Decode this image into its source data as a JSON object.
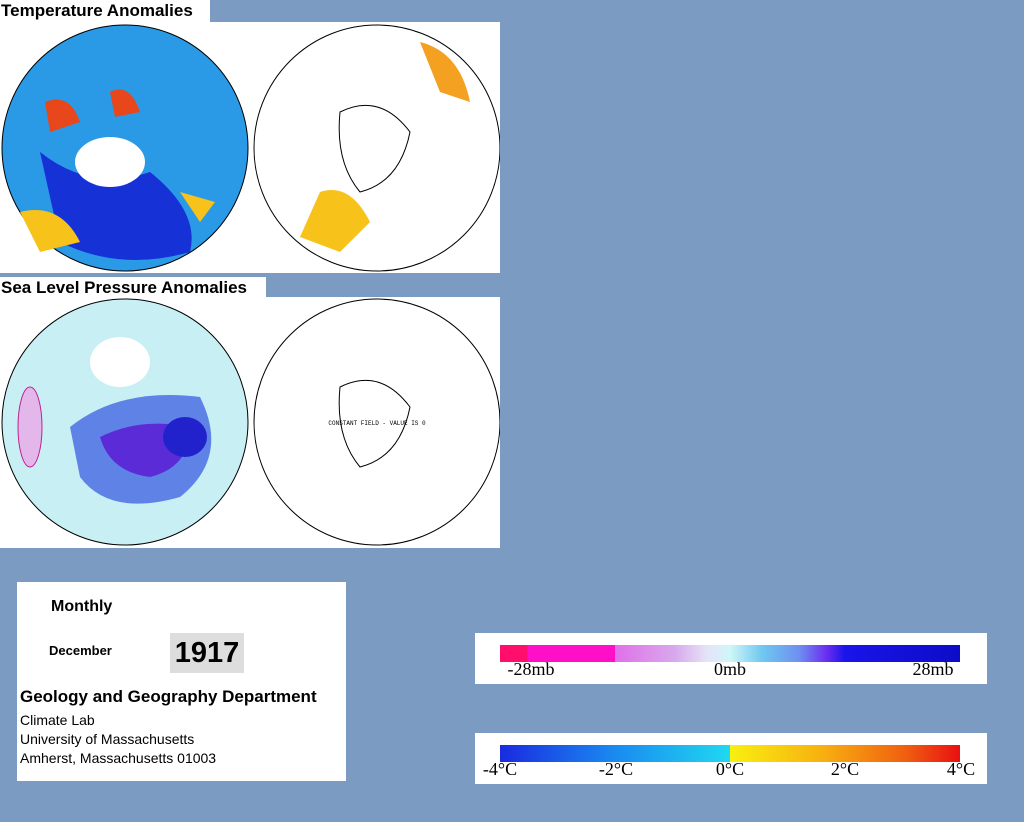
{
  "titles": {
    "temperature": "Temperature Anomalies",
    "pressure": "Sea Level Pressure Anomalies"
  },
  "maps": {
    "constant_field_note": "CONSTANT FIELD - VALUE IS 0"
  },
  "info": {
    "period": "Monthly",
    "month": "December",
    "year": "1917",
    "department": "Geology and Geography Department",
    "address": [
      "Climate Lab",
      "University of Massachusetts",
      "Amherst, Massachusetts 01003"
    ]
  },
  "legends": {
    "pressure": [
      "-28mb",
      "0mb",
      "28mb"
    ],
    "temperature": [
      "-4°C",
      "-2°C",
      "0°C",
      "2°C",
      "4°C"
    ]
  }
}
